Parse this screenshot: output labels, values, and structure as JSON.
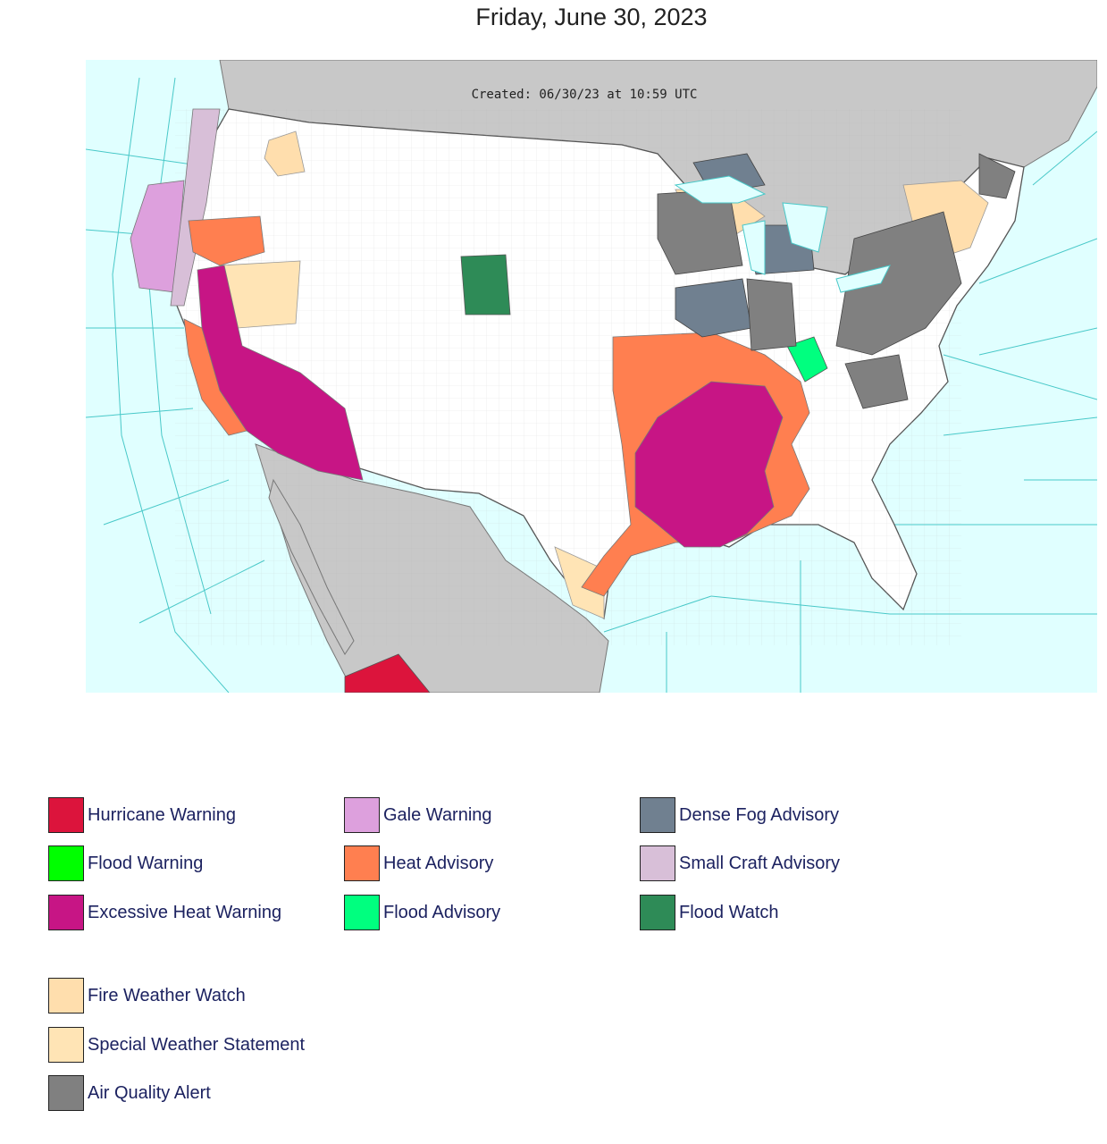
{
  "page_title": "Friday, June 30, 2023",
  "map": {
    "created_stamp": "Created: 06/30/23 at 10:59 UTC"
  },
  "legend": [
    {
      "label": "Hurricane Warning",
      "color": "#dc143c"
    },
    {
      "label": "Flood Warning",
      "color": "#00ff00"
    },
    {
      "label": "Excessive Heat Warning",
      "color": "#c71585"
    },
    {
      "label": "Fire Weather Watch",
      "color": "#ffdead"
    },
    {
      "label": "Special Weather Statement",
      "color": "#ffe4b5"
    },
    {
      "label": "Air Quality Alert",
      "color": "#808080"
    },
    {
      "label": "Gale Warning",
      "color": "#dda0dd"
    },
    {
      "label": "Heat Advisory",
      "color": "#ff7f50"
    },
    {
      "label": "Flood Advisory",
      "color": "#00ff7f"
    },
    {
      "label": "Dense Fog Advisory",
      "color": "#708090"
    },
    {
      "label": "Small Craft Advisory",
      "color": "#d8bfd8"
    },
    {
      "label": "Flood Watch",
      "color": "#2e8b57"
    }
  ]
}
